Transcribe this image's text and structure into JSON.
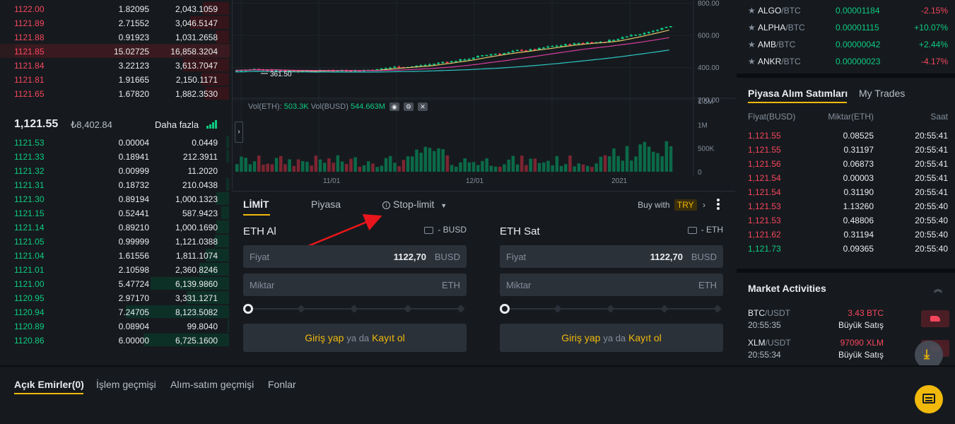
{
  "orderbook": {
    "asks": [
      {
        "price": "1122.00",
        "amount": "1.82095",
        "total": "2,043.1059"
      },
      {
        "price": "1121.89",
        "amount": "2.71552",
        "total": "3,046.5147"
      },
      {
        "price": "1121.88",
        "amount": "0.91923",
        "total": "1,031.2658"
      },
      {
        "price": "1121.85",
        "amount": "15.02725",
        "total": "16,858.3204"
      },
      {
        "price": "1121.84",
        "amount": "3.22123",
        "total": "3,613.7047"
      },
      {
        "price": "1121.81",
        "amount": "1.91665",
        "total": "2,150.1171"
      },
      {
        "price": "1121.65",
        "amount": "1.67820",
        "total": "1,882.3530"
      }
    ],
    "last_price": "1,121.55",
    "fiat_price": "₺8,402.84",
    "more_label": "Daha fazla",
    "bids": [
      {
        "price": "1121.53",
        "amount": "0.00004",
        "total": "0.0449"
      },
      {
        "price": "1121.33",
        "amount": "0.18941",
        "total": "212.3911"
      },
      {
        "price": "1121.32",
        "amount": "0.00999",
        "total": "11.2020"
      },
      {
        "price": "1121.31",
        "amount": "0.18732",
        "total": "210.0438"
      },
      {
        "price": "1121.30",
        "amount": "0.89194",
        "total": "1,000.1323"
      },
      {
        "price": "1121.15",
        "amount": "0.52441",
        "total": "587.9423"
      },
      {
        "price": "1121.14",
        "amount": "0.89210",
        "total": "1,000.1690"
      },
      {
        "price": "1121.05",
        "amount": "0.99999",
        "total": "1,121.0388"
      },
      {
        "price": "1121.04",
        "amount": "1.61556",
        "total": "1,811.1074"
      },
      {
        "price": "1121.01",
        "amount": "2.10598",
        "total": "2,360.8246"
      },
      {
        "price": "1121.00",
        "amount": "5.47724",
        "total": "6,139.9860"
      },
      {
        "price": "1120.95",
        "amount": "2.97170",
        "total": "3,331.1271"
      },
      {
        "price": "1120.94",
        "amount": "7.24705",
        "total": "8,123.5082"
      },
      {
        "price": "1120.89",
        "amount": "0.08904",
        "total": "99.8040"
      },
      {
        "price": "1120.86",
        "amount": "6.00000",
        "total": "6,725.1600"
      }
    ]
  },
  "chart": {
    "price_axis": [
      "800.00",
      "600.00",
      "400.00",
      "200.00"
    ],
    "vol_axis": [
      "1.5M",
      "1M",
      "500K",
      "0"
    ],
    "date_axis": [
      "11/01",
      "12/01",
      "2021"
    ],
    "low_marker": "361.50",
    "vol_label_eth": "Vol(ETH):",
    "vol_value_eth": "503.3K",
    "vol_label_busd": "Vol(BUSD)",
    "vol_value_busd": "544.663M",
    "colors": {
      "up": "#0ecb81",
      "down": "#f6465d",
      "ma1": "#e0c36a",
      "ma2": "#d63ca0",
      "ma3": "#2ec5c5"
    }
  },
  "form": {
    "tabs": [
      "LİMİT",
      "Piyasa",
      "Stop-limit"
    ],
    "buy_with_label": "Buy with",
    "buy_with_currency": "TRY",
    "buy": {
      "title": "ETH Al",
      "wallet": "- BUSD",
      "price_label": "Fiyat",
      "price_value": "1122,70",
      "price_unit": "BUSD",
      "amount_label": "Miktar",
      "amount_unit": "ETH"
    },
    "sell": {
      "title": "ETH Sat",
      "wallet": "- ETH",
      "price_label": "Fiyat",
      "price_value": "1122,70",
      "price_unit": "BUSD",
      "amount_label": "Miktar",
      "amount_unit": "ETH"
    },
    "login": "Giriş yap",
    "or": "ya da",
    "register": "Kayıt ol"
  },
  "markets": [
    {
      "base": "ALGO",
      "quote": "/BTC",
      "price": "0.00001184",
      "change": "-2.15%",
      "color": "#f6465d"
    },
    {
      "base": "ALPHA",
      "quote": "/BTC",
      "price": "0.00001115",
      "change": "+10.07%",
      "color": "#0ecb81"
    },
    {
      "base": "AMB",
      "quote": "/BTC",
      "price": "0.00000042",
      "change": "+2.44%",
      "color": "#0ecb81"
    },
    {
      "base": "ANKR",
      "quote": "/BTC",
      "price": "0.00000023",
      "change": "-4.17%",
      "color": "#f6465d"
    }
  ],
  "trades": {
    "tab_active": "Piyasa Alım Satımları",
    "tab_other": "My Trades",
    "headers": [
      "Fiyat(BUSD)",
      "Miktar(ETH)",
      "Saat"
    ],
    "rows": [
      {
        "price": "1,121.55",
        "amount": "0.08525",
        "time": "20:55:41",
        "color": "#f6465d"
      },
      {
        "price": "1,121.55",
        "amount": "0.31197",
        "time": "20:55:41",
        "color": "#f6465d"
      },
      {
        "price": "1,121.56",
        "amount": "0.06873",
        "time": "20:55:41",
        "color": "#f6465d"
      },
      {
        "price": "1,121.54",
        "amount": "0.00003",
        "time": "20:55:41",
        "color": "#f6465d"
      },
      {
        "price": "1,121.54",
        "amount": "0.31190",
        "time": "20:55:41",
        "color": "#f6465d"
      },
      {
        "price": "1,121.53",
        "amount": "1.13260",
        "time": "20:55:40",
        "color": "#f6465d"
      },
      {
        "price": "1,121.53",
        "amount": "0.48806",
        "time": "20:55:40",
        "color": "#f6465d"
      },
      {
        "price": "1,121.62",
        "amount": "0.31194",
        "time": "20:55:40",
        "color": "#f6465d"
      },
      {
        "price": "1,121.73",
        "amount": "0.09365",
        "time": "20:55:40",
        "color": "#0ecb81"
      }
    ]
  },
  "market_activities": {
    "title": "Market Activities",
    "items": [
      {
        "base": "BTC",
        "quote": "/USDT",
        "time": "20:55:35",
        "amount": "3.43 BTC",
        "label": "Büyük Satış"
      },
      {
        "base": "XLM",
        "quote": "/USDT",
        "time": "20:55:34",
        "amount": "97090 XLM",
        "label": "Büyük Satış"
      }
    ]
  },
  "bottom_tabs": [
    "Açık Emirler(0)",
    "İşlem geçmişi",
    "Alım-satım geçmişi",
    "Fonlar"
  ]
}
